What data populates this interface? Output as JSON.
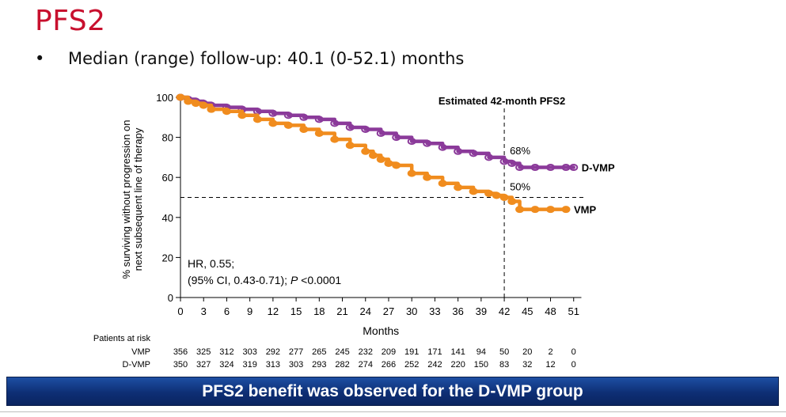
{
  "slide": {
    "title": "PFS2",
    "bullet": "Median (range) follow-up: 40.1 (0-52.1) months",
    "bullet_marker": "•",
    "banner": "PFS2 benefit was observed for the D-VMP group"
  },
  "chart_data": {
    "type": "line",
    "subtype": "kaplan-meier",
    "title": "",
    "annotation_title": "Estimated 42-month PFS2",
    "xlabel": "Months",
    "ylabel": "% surviving without progression on next subsequent line of therapy",
    "ylabel_lines": [
      "% surviving without progression on",
      "next subsequent line of therapy"
    ],
    "xlim": [
      0,
      52
    ],
    "ylim": [
      0,
      100
    ],
    "x_ticks": [
      0,
      3,
      6,
      9,
      12,
      15,
      18,
      21,
      24,
      27,
      30,
      33,
      36,
      39,
      42,
      45,
      48,
      51
    ],
    "y_ticks": [
      0,
      20,
      40,
      60,
      80,
      100
    ],
    "reference_lines": {
      "vertical_x": 42,
      "horizontal_y": 50
    },
    "series": [
      {
        "name": "D-VMP",
        "color": "#8b3a9a",
        "point_label": "68%",
        "x": [
          0,
          1,
          2,
          3,
          4,
          6,
          8,
          10,
          12,
          14,
          16,
          18,
          20,
          22,
          24,
          26,
          28,
          30,
          32,
          34,
          36,
          38,
          40,
          42,
          43,
          44,
          46,
          48,
          50,
          51
        ],
        "y": [
          100,
          99,
          98,
          97,
          96,
          95,
          94,
          93,
          92,
          91,
          90,
          89,
          87,
          85,
          84,
          82,
          80,
          78,
          77,
          75,
          73,
          72,
          70,
          68,
          67,
          65,
          65,
          65,
          65,
          65
        ]
      },
      {
        "name": "VMP",
        "color": "#f08c1e",
        "point_label": "50%",
        "x": [
          0,
          1,
          2,
          3,
          4,
          6,
          8,
          10,
          12,
          14,
          16,
          18,
          20,
          22,
          24,
          25,
          26,
          27,
          28,
          30,
          32,
          34,
          36,
          38,
          40,
          41,
          42,
          43,
          44,
          46,
          48,
          50
        ],
        "y": [
          100,
          98,
          97,
          96,
          94,
          93,
          91,
          89,
          87,
          86,
          84,
          82,
          79,
          76,
          73,
          71,
          69,
          67,
          66,
          62,
          60,
          57,
          55,
          53,
          52,
          51,
          50,
          48,
          44,
          44,
          44,
          44
        ]
      }
    ],
    "annotations": [
      "HR, 0.55;",
      "(95% CI, 0.43-0.71); P <0.0001"
    ],
    "risk_table": {
      "title": "Patients at risk",
      "rows": [
        {
          "label": "VMP",
          "values": [
            "356",
            "325",
            "312",
            "303",
            "292",
            "277",
            "265",
            "245",
            "232",
            "209",
            "191",
            "171",
            "141",
            "94",
            "50",
            "20",
            "2",
            "0"
          ]
        },
        {
          "label": "D-VMP",
          "values": [
            "350",
            "327",
            "324",
            "319",
            "313",
            "303",
            "293",
            "282",
            "274",
            "266",
            "252",
            "242",
            "220",
            "150",
            "83",
            "32",
            "12",
            "0"
          ]
        }
      ]
    }
  }
}
